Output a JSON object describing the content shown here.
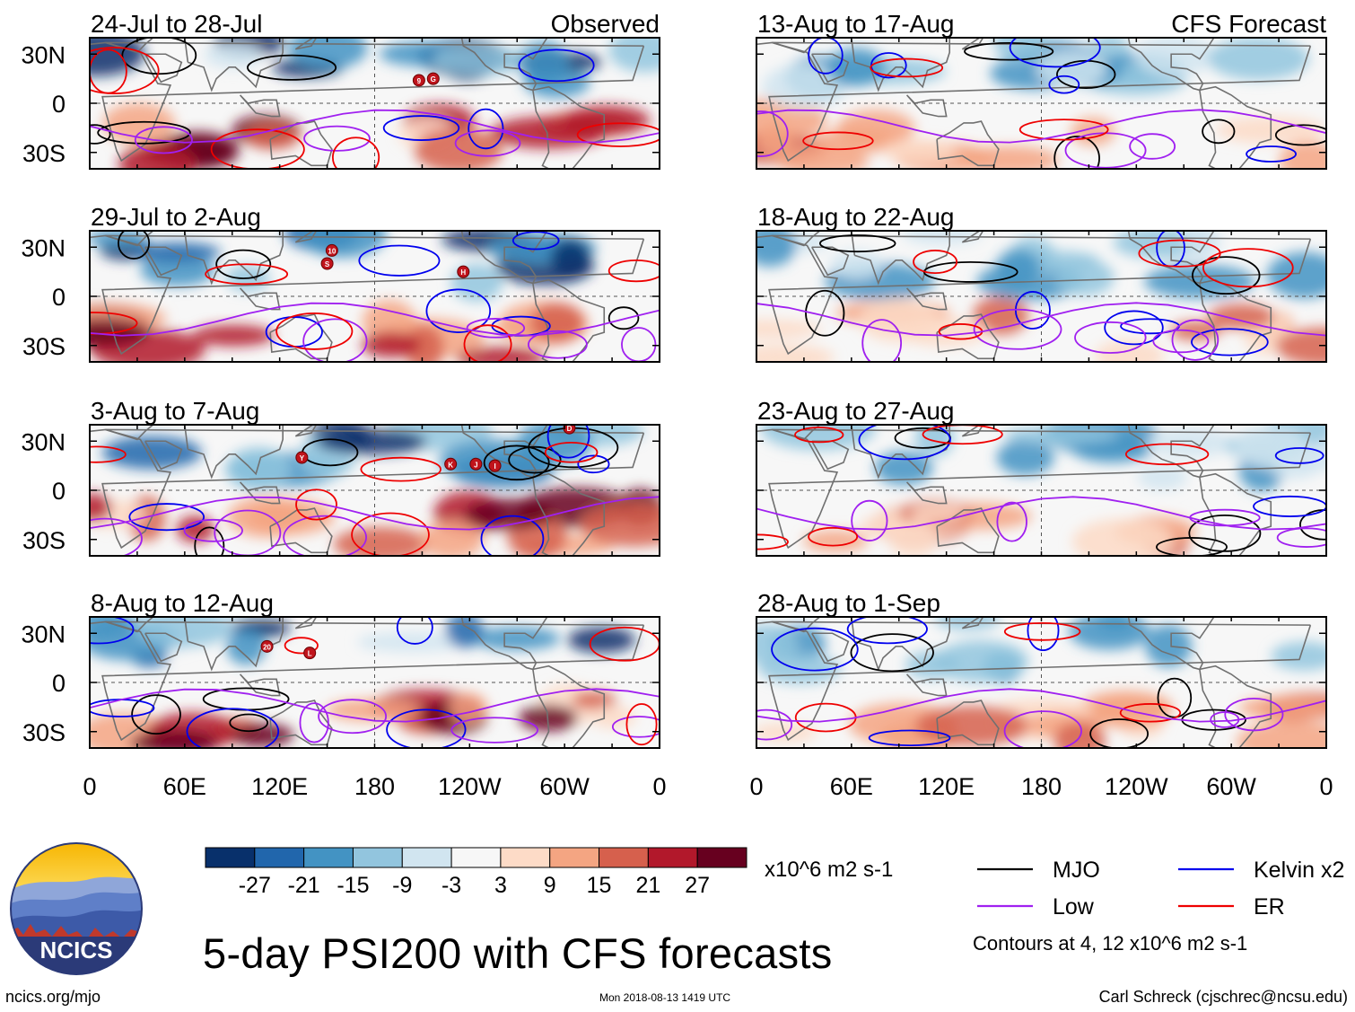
{
  "figure": {
    "title": "5-day PSI200 with CFS forecasts",
    "site": "ncics.org/mjo",
    "timestamp": "Mon 2018-08-13 1419 UTC",
    "author": "Carl Schreck (cjschrec@ncsu.edu)",
    "units": "x10^6 m2 s-1",
    "contour_note": "Contours at 4, 12 x10^6 m2 s-1",
    "logo_text": "NCICS"
  },
  "chart_data": {
    "type": "heatmap",
    "variable": "PSI200",
    "columns": [
      {
        "label": "Observed",
        "panels": [
          "24-Jul to 28-Jul",
          "29-Jul to 2-Aug",
          "3-Aug to 7-Aug",
          "8-Aug to 12-Aug"
        ]
      },
      {
        "label": "CFS Forecast",
        "panels": [
          "13-Aug to 17-Aug",
          "18-Aug to 22-Aug",
          "23-Aug to 27-Aug",
          "28-Aug to 1-Sep"
        ]
      }
    ],
    "ylabels": [
      "30N",
      "0",
      "30S"
    ],
    "yvalues": [
      30,
      0,
      -30
    ],
    "ylim": [
      -40,
      40
    ],
    "xlabels": [
      "0",
      "60E",
      "120E",
      "180",
      "120W",
      "60W",
      "0"
    ],
    "xvalues": [
      0,
      60,
      120,
      180,
      240,
      300,
      360
    ],
    "xlim": [
      0,
      360
    ],
    "colorbar": {
      "labels": [
        "-27",
        "-21",
        "-15",
        "-9",
        "-3",
        "3",
        "9",
        "15",
        "21",
        "27"
      ],
      "colors": [
        "#08306b",
        "#2166ac",
        "#4393c3",
        "#92c5de",
        "#d1e5f0",
        "#f7f7f7",
        "#fddbc7",
        "#f4a582",
        "#d6604d",
        "#b2182b",
        "#67001f"
      ]
    },
    "legend": [
      {
        "label": "MJO",
        "color": "#000000"
      },
      {
        "label": "Kelvin x2",
        "color": "#0000ee"
      },
      {
        "label": "Low",
        "color": "#a020f0"
      },
      {
        "label": "ER",
        "color": "#ee0000"
      }
    ],
    "storms": [
      [
        {
          "label": "9",
          "lon": 208,
          "lat": 14
        },
        {
          "label": "G",
          "lon": 217,
          "lat": 15
        }
      ],
      [
        {
          "label": "10",
          "lon": 153,
          "lat": 28
        },
        {
          "label": "S",
          "lon": 150,
          "lat": 20
        },
        {
          "label": "H",
          "lon": 236,
          "lat": 15
        }
      ],
      [
        {
          "label": "D",
          "lon": 303,
          "lat": 38
        },
        {
          "label": "Y",
          "lon": 134,
          "lat": 20
        },
        {
          "label": "K",
          "lon": 228,
          "lat": 16
        },
        {
          "label": "J",
          "lon": 244,
          "lat": 16
        },
        {
          "label": "I",
          "lon": 256,
          "lat": 15
        }
      ],
      [
        {
          "label": "20",
          "lon": 112,
          "lat": 22
        },
        {
          "label": "L",
          "lon": 139,
          "lat": 18
        }
      ],
      [],
      [],
      [],
      []
    ]
  }
}
